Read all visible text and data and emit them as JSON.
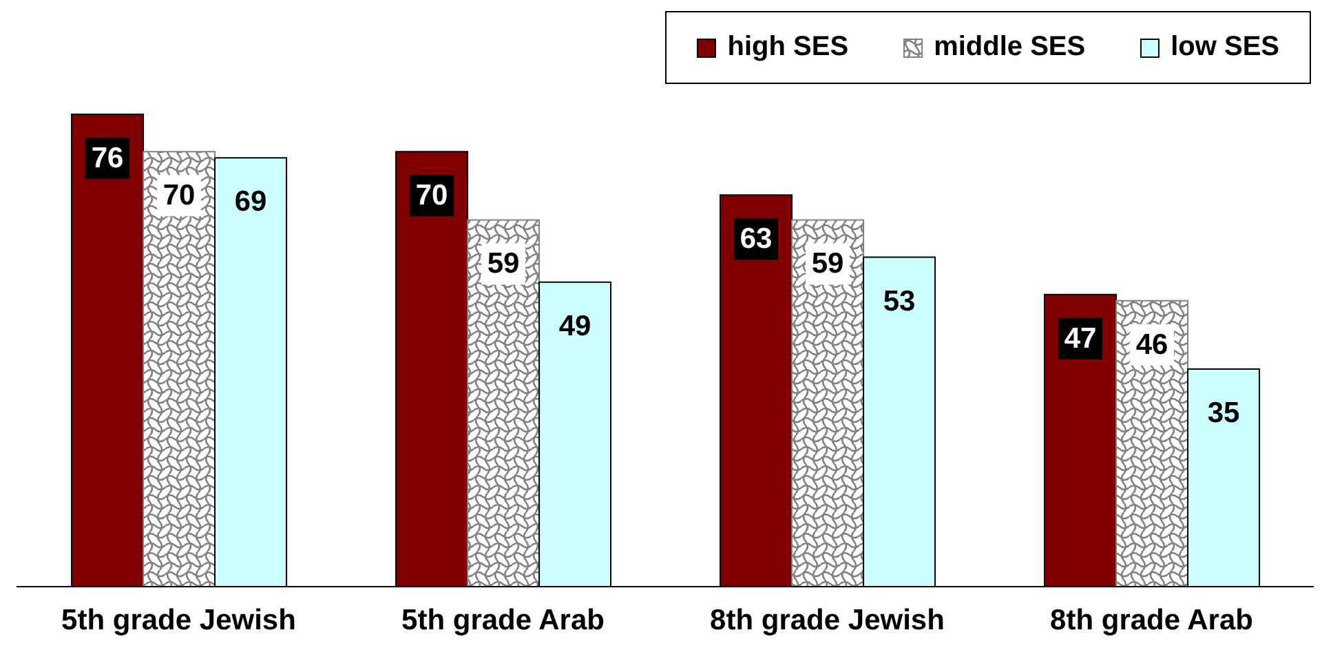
{
  "chart_data": {
    "type": "bar",
    "categories": [
      "5th grade Jewish",
      "5th grade Arab",
      "8th grade Jewish",
      "8th grade Arab"
    ],
    "series": [
      {
        "name": "high SES",
        "color": "#800000",
        "values": [
          76,
          70,
          63,
          47
        ]
      },
      {
        "name": "middle SES",
        "color": "#808080",
        "values": [
          70,
          59,
          59,
          46
        ]
      },
      {
        "name": "low SES",
        "color": "#ccffff",
        "values": [
          69,
          49,
          53,
          35
        ]
      }
    ],
    "data_labels": true,
    "legend": "top right",
    "grid": false
  }
}
